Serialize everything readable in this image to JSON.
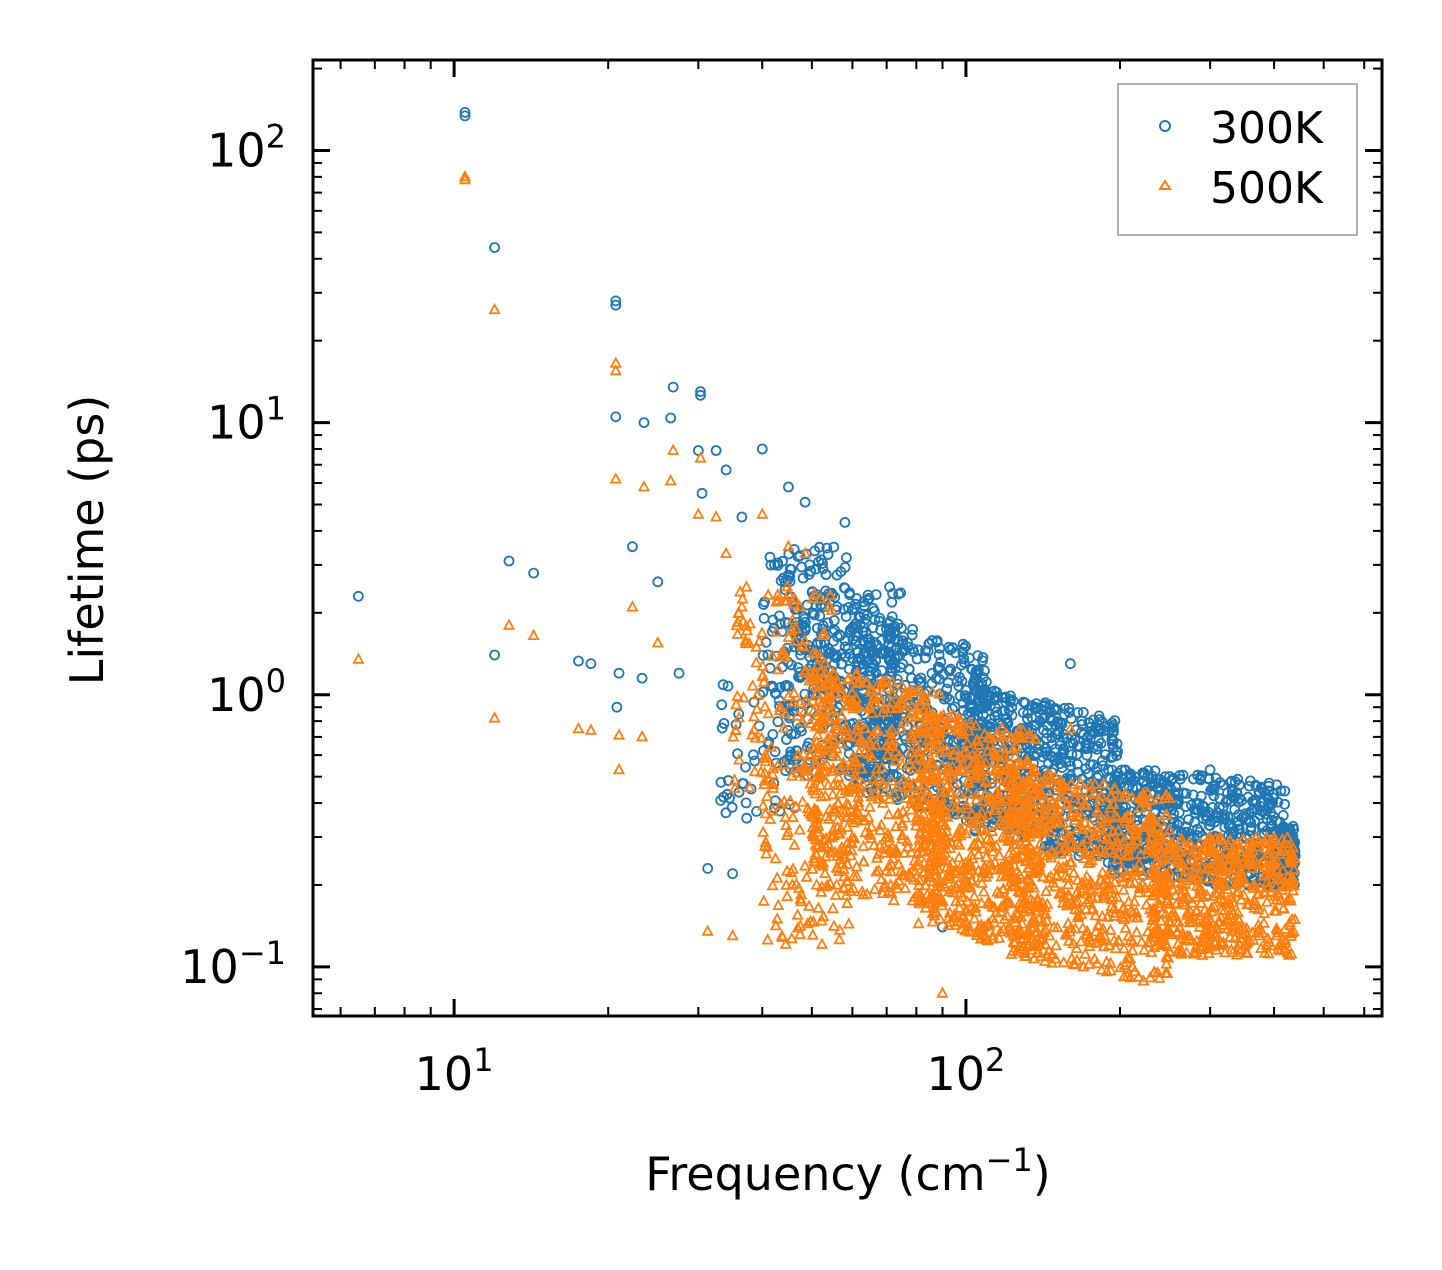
{
  "chart_data": {
    "type": "scatter",
    "title": "",
    "xlabel_text": "Frequency (cm",
    "xlabel_sup": "−1",
    "xlabel_close": ")",
    "ylabel": "Lifetime (ps)",
    "xscale": "log",
    "yscale": "log",
    "xlim": [
      5.3,
      650
    ],
    "ylim": [
      0.066,
      215
    ],
    "x_ticks": [
      {
        "value": 10,
        "base": "10",
        "exp": "1"
      },
      {
        "value": 100,
        "base": "10",
        "exp": "2"
      }
    ],
    "y_ticks": [
      {
        "value": 0.1,
        "base": "10",
        "exp": "−1"
      },
      {
        "value": 1,
        "base": "10",
        "exp": "0"
      },
      {
        "value": 10,
        "base": "10",
        "exp": "1"
      },
      {
        "value": 100,
        "base": "10",
        "exp": "2"
      }
    ],
    "legend_position": "top-right",
    "series": [
      {
        "name": "300K",
        "marker": "circle",
        "color": "#1f77b4",
        "key_points": [
          [
            6.5,
            2.3
          ],
          [
            10.5,
            138
          ],
          [
            10.5,
            134
          ],
          [
            12,
            44
          ],
          [
            12,
            1.4
          ],
          [
            12.8,
            3.1
          ],
          [
            14.3,
            2.8
          ],
          [
            17.5,
            1.33
          ],
          [
            18.5,
            1.3
          ],
          [
            20.7,
            28
          ],
          [
            20.7,
            27
          ],
          [
            20.7,
            10.5
          ],
          [
            20.8,
            0.9
          ],
          [
            21,
            1.2
          ],
          [
            22.3,
            3.5
          ],
          [
            23.3,
            1.15
          ],
          [
            23.5,
            10
          ],
          [
            25,
            2.6
          ],
          [
            26.5,
            10.4
          ],
          [
            26.8,
            13.5
          ],
          [
            27.5,
            1.2
          ],
          [
            30.3,
            13
          ],
          [
            30.3,
            12.6
          ],
          [
            30,
            7.9
          ],
          [
            32.5,
            7.9
          ],
          [
            30.5,
            5.5
          ],
          [
            34,
            6.7
          ],
          [
            36.5,
            4.5
          ],
          [
            40,
            8
          ],
          [
            45,
            5.8
          ],
          [
            48.5,
            5.1
          ],
          [
            58,
            4.3
          ],
          [
            31.3,
            0.23
          ],
          [
            35,
            0.22
          ],
          [
            90,
            0.14
          ],
          [
            160,
            1.3
          ],
          [
            245,
            0.5
          ],
          [
            300,
            0.53
          ]
        ],
        "cloud": [
          {
            "x": [
              40,
              60
            ],
            "y": [
              0.9,
              3.5
            ],
            "n": 140,
            "ramp": 0
          },
          {
            "x": [
              33,
              48
            ],
            "y": [
              0.35,
              1.1
            ],
            "n": 60,
            "ramp": 0
          },
          {
            "x": [
              45,
              75
            ],
            "y": [
              0.5,
              2.5
            ],
            "n": 280,
            "ramp": 0
          },
          {
            "x": [
              60,
              110
            ],
            "y": [
              0.45,
              2.0
            ],
            "n": 500,
            "ramp": -0.5
          },
          {
            "x": [
              100,
              200
            ],
            "y": [
              0.32,
              1.1
            ],
            "n": 600,
            "ramp": -0.45
          },
          {
            "x": [
              190,
              420
            ],
            "y": [
              0.22,
              0.55
            ],
            "n": 600,
            "ramp": -0.2
          },
          {
            "x": [
              410,
              440
            ],
            "y": [
              0.2,
              0.33
            ],
            "n": 120,
            "ramp": 0
          }
        ]
      },
      {
        "name": "500K",
        "marker": "triangle",
        "color": "#ff7f0e",
        "key_points": [
          [
            6.5,
            1.35
          ],
          [
            10.5,
            80
          ],
          [
            10.5,
            78
          ],
          [
            12,
            26
          ],
          [
            12,
            0.82
          ],
          [
            12.8,
            1.8
          ],
          [
            14.3,
            1.65
          ],
          [
            17.5,
            0.75
          ],
          [
            18.5,
            0.74
          ],
          [
            20.7,
            16.5
          ],
          [
            20.7,
            15.5
          ],
          [
            20.7,
            6.2
          ],
          [
            21,
            0.53
          ],
          [
            21,
            0.71
          ],
          [
            22.3,
            2.1
          ],
          [
            23.3,
            0.7
          ],
          [
            23.5,
            5.8
          ],
          [
            25,
            1.55
          ],
          [
            26.5,
            6.1
          ],
          [
            26.8,
            7.9
          ],
          [
            30.3,
            7.4
          ],
          [
            30,
            4.6
          ],
          [
            32.5,
            4.5
          ],
          [
            34,
            3.3
          ],
          [
            40,
            4.6
          ],
          [
            45,
            3.5
          ],
          [
            48.5,
            3.3
          ],
          [
            31.3,
            0.135
          ],
          [
            35,
            0.13
          ],
          [
            90,
            0.08
          ],
          [
            160,
            0.75
          ],
          [
            300,
            0.3
          ]
        ],
        "cloud": [
          {
            "x": [
              35,
              55
            ],
            "y": [
              0.45,
              2.5
            ],
            "n": 140,
            "ramp": 0
          },
          {
            "x": [
              40,
              60
            ],
            "y": [
              0.12,
              0.6
            ],
            "n": 120,
            "ramp": 0
          },
          {
            "x": [
              50,
              90
            ],
            "y": [
              0.2,
              1.3
            ],
            "n": 500,
            "ramp": -0.4
          },
          {
            "x": [
              80,
              140
            ],
            "y": [
              0.14,
              0.9
            ],
            "n": 600,
            "ramp": -0.4
          },
          {
            "x": [
              120,
              250
            ],
            "y": [
              0.11,
              0.55
            ],
            "n": 600,
            "ramp": -0.35
          },
          {
            "x": [
              230,
              440
            ],
            "y": [
              0.11,
              0.3
            ],
            "n": 500,
            "ramp": 0
          }
        ]
      }
    ]
  }
}
